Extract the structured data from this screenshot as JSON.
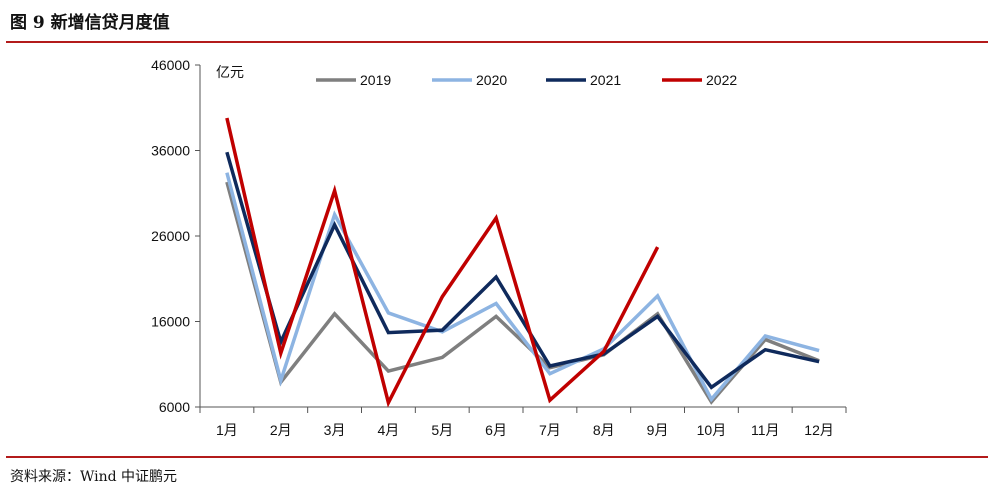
{
  "figure": {
    "title": "图 9    新增信贷月度值",
    "source": "资料来源：Wind    中证鹏元"
  },
  "chart_data": {
    "type": "line",
    "title": "",
    "xlabel": "",
    "ylabel": "亿元",
    "ylim": [
      6000,
      46000
    ],
    "yticks": [
      "6000",
      "16000",
      "26000",
      "36000",
      "46000"
    ],
    "categories": [
      "1月",
      "2月",
      "3月",
      "4月",
      "5月",
      "6月",
      "7月",
      "8月",
      "9月",
      "10月",
      "11月",
      "12月"
    ],
    "legend_position": "top",
    "grid": false,
    "series": [
      {
        "name": "2019",
        "color": "#7f7f7f",
        "values": [
          32300,
          8900,
          16900,
          10200,
          11800,
          16600,
          10600,
          12100,
          16900,
          6600,
          13900,
          11400
        ]
      },
      {
        "name": "2020",
        "color": "#8db4e2",
        "values": [
          33400,
          9100,
          28500,
          17000,
          14800,
          18100,
          9900,
          12800,
          19000,
          6900,
          14300,
          12600
        ]
      },
      {
        "name": "2021",
        "color": "#0f2a5c",
        "values": [
          35800,
          13600,
          27300,
          14700,
          15000,
          21200,
          10800,
          12200,
          16600,
          8300,
          12700,
          11300
        ]
      },
      {
        "name": "2022",
        "color": "#c00000",
        "values": [
          39800,
          12300,
          31300,
          6500,
          18900,
          28100,
          6800,
          12500,
          24700,
          null,
          null,
          null
        ]
      }
    ]
  }
}
